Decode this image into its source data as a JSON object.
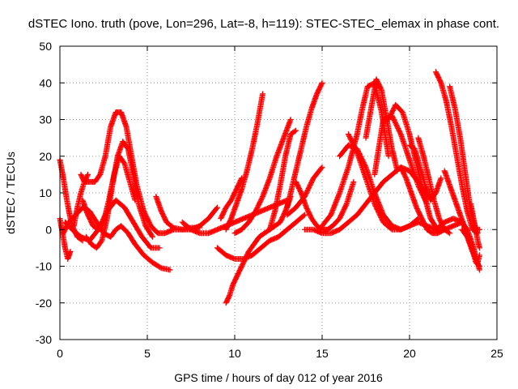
{
  "chart_data": {
    "type": "scatter",
    "title": "dSTEC Iono. truth (pove, Lon=296, Lat=-8, h=119): STEC-STEC_elemax in phase cont.",
    "xlabel": "GPS time / hours of day 012 of year 2016",
    "ylabel": "dSTEC  / TECUs",
    "xlim": [
      0,
      25
    ],
    "ylim": [
      -30,
      50
    ],
    "xticks": [
      0,
      5,
      10,
      15,
      20,
      25
    ],
    "yticks": [
      -30,
      -20,
      -10,
      0,
      10,
      20,
      30,
      40,
      50
    ],
    "grid": true,
    "marker": "+",
    "color": "#ff0000",
    "series": [
      {
        "x": [
          0.0,
          0.2,
          0.4,
          0.6,
          0.8,
          1.0,
          1.3
        ],
        "y": [
          19,
          14,
          8,
          3,
          0,
          -2,
          -3
        ]
      },
      {
        "x": [
          0.0,
          0.15,
          0.3,
          0.45,
          0.6
        ],
        "y": [
          3,
          -1,
          -5,
          -8,
          -6
        ]
      },
      {
        "x": [
          0.2,
          0.5,
          0.9,
          1.3,
          1.7,
          2.1,
          2.5,
          2.9,
          3.2,
          3.5,
          3.9,
          4.3,
          4.8,
          5.3,
          5.8,
          6.3
        ],
        "y": [
          -1,
          2,
          4,
          6,
          5,
          2,
          -1,
          -2,
          0,
          1,
          -1,
          -4,
          -7,
          -9,
          -10.5,
          -11
        ]
      },
      {
        "x": [
          0.3,
          0.7,
          1.2,
          1.7,
          2.2,
          2.7,
          3.2,
          3.7,
          4.2,
          4.7,
          5.2,
          5.7
        ],
        "y": [
          2,
          0,
          -2,
          -3,
          0,
          5,
          8,
          6,
          2,
          -2,
          -5,
          -5
        ]
      },
      {
        "x": [
          1.2,
          1.4,
          1.7,
          2.0,
          2.3,
          2.6,
          2.9,
          3.2,
          3.5,
          3.8,
          4.1,
          4.4,
          4.8,
          5.2,
          5.6,
          6.0,
          6.5,
          7.0,
          7.5,
          8.0
        ],
        "y": [
          15,
          13,
          13,
          13,
          15,
          20,
          28,
          32,
          32,
          28,
          20,
          12,
          5,
          1,
          -1,
          -1,
          0,
          0,
          0.5,
          0.5
        ]
      },
      {
        "x": [
          1.5,
          1.8,
          2.1,
          2.4,
          2.7,
          3.0,
          3.3,
          3.6,
          3.9,
          4.2,
          4.5,
          4.9,
          5.3
        ],
        "y": [
          -2,
          -4,
          -5,
          -3,
          3,
          12,
          20,
          24,
          22,
          15,
          7,
          1,
          -2
        ]
      },
      {
        "x": [
          1.3,
          1.6,
          1.9,
          2.2,
          2.5,
          2.8,
          3.1,
          3.4,
          3.7,
          4.0,
          4.3
        ],
        "y": [
          8,
          4,
          1,
          0,
          2,
          8,
          15,
          20,
          18,
          13,
          8
        ]
      },
      {
        "x": [
          0.8,
          1.0,
          1.2,
          1.4,
          1.6
        ],
        "y": [
          1,
          6,
          10,
          13,
          15
        ]
      },
      {
        "x": [
          5.5,
          5.8,
          6.1,
          6.5,
          7.0,
          7.5,
          8.0,
          8.5,
          9.0
        ],
        "y": [
          9,
          5,
          2,
          0.5,
          0,
          0,
          1,
          3,
          6
        ]
      },
      {
        "x": [
          7.0,
          7.5,
          8.0,
          8.5,
          9.0,
          9.5,
          10.0,
          10.5,
          11.0,
          11.5,
          12.0,
          12.5,
          13.0
        ],
        "y": [
          2,
          0,
          -1,
          -1,
          0,
          1,
          2,
          3,
          4,
          5,
          6,
          7,
          8
        ]
      },
      {
        "x": [
          9.0,
          9.5,
          10.0,
          10.5,
          11.0,
          11.5,
          12.0,
          12.5,
          13.0,
          13.5,
          14.0
        ],
        "y": [
          -5,
          -7,
          -8,
          -8,
          -7,
          -5,
          -3,
          -2,
          0,
          2,
          4
        ]
      },
      {
        "x": [
          9.5,
          9.7,
          9.9,
          10.2,
          10.5,
          10.8,
          11.1,
          11.4,
          11.7,
          12.0,
          12.3,
          12.6,
          12.9,
          13.2
        ],
        "y": [
          -20,
          -18,
          -15,
          -12,
          -9,
          -6,
          -4,
          -2,
          -1,
          0,
          1,
          2,
          5,
          9
        ]
      },
      {
        "x": [
          9.2,
          9.5,
          9.8,
          10.1,
          10.4
        ],
        "y": [
          3,
          6,
          8,
          11,
          14
        ]
      },
      {
        "x": [
          9.5,
          9.8,
          10.1,
          10.4,
          10.7,
          11.0,
          11.3,
          11.6
        ],
        "y": [
          0,
          3,
          7,
          11,
          16,
          22,
          29,
          37
        ]
      },
      {
        "x": [
          10.0,
          10.4,
          10.8,
          11.2,
          11.6,
          12.0,
          12.4,
          12.8,
          13.2
        ],
        "y": [
          -1,
          0,
          2,
          5,
          9,
          14,
          20,
          25,
          30
        ]
      },
      {
        "x": [
          12.0,
          12.3,
          12.6,
          12.9,
          13.2,
          13.5
        ],
        "y": [
          0,
          5,
          12,
          20,
          26,
          27
        ]
      },
      {
        "x": [
          13.0,
          13.5,
          14.0,
          14.5,
          15.0
        ],
        "y": [
          4,
          6,
          9,
          14,
          17
        ]
      },
      {
        "x": [
          13.0,
          13.2,
          13.5,
          13.8,
          14.1,
          14.4,
          14.7,
          15.0
        ],
        "y": [
          6,
          10,
          16,
          22,
          28,
          33,
          37,
          40
        ]
      },
      {
        "x": [
          13.5,
          13.8,
          14.1,
          14.4,
          14.7,
          15.0,
          15.3,
          15.6,
          16.0,
          16.4,
          16.8
        ],
        "y": [
          13,
          10,
          6,
          3,
          1,
          0,
          0,
          1,
          3,
          7,
          13
        ]
      },
      {
        "x": [
          14.0,
          14.5,
          15.0,
          15.5,
          16.0,
          16.5,
          17.0,
          17.5,
          18.0,
          18.5,
          19.0,
          19.5,
          20.0,
          20.5,
          21.0
        ],
        "y": [
          0,
          0,
          -1,
          -1,
          0,
          2,
          4,
          7,
          10,
          13,
          15,
          17,
          16,
          13,
          9
        ]
      },
      {
        "x": [
          15.0,
          15.5,
          16.0,
          16.5,
          17.0,
          17.3,
          17.6,
          18.0,
          18.4,
          18.8
        ],
        "y": [
          1,
          4,
          10,
          17,
          26,
          33,
          39,
          40,
          32,
          20
        ]
      },
      {
        "x": [
          16.0,
          16.5,
          17.0,
          17.5,
          18.0,
          18.5,
          19.0,
          19.5,
          20.0,
          20.5
        ],
        "y": [
          20,
          23,
          22,
          17,
          10,
          4,
          1,
          0,
          1,
          3
        ]
      },
      {
        "x": [
          16.5,
          17.0,
          17.5,
          18.0,
          18.5,
          19.0,
          19.5,
          20.0,
          20.5,
          21.0,
          21.5,
          22.0
        ],
        "y": [
          26,
          21,
          14,
          7,
          2,
          0,
          0,
          1,
          2,
          1,
          0,
          0
        ]
      },
      {
        "x": [
          17.5,
          17.8,
          18.1,
          18.4,
          18.7,
          19.0,
          19.3
        ],
        "y": [
          25,
          33,
          41,
          38,
          30,
          22,
          16
        ]
      },
      {
        "x": [
          18.0,
          18.5,
          19.0,
          19.5,
          20.0,
          20.5,
          21.0
        ],
        "y": [
          15,
          30,
          31,
          26,
          19,
          12,
          7
        ]
      },
      {
        "x": [
          18.8,
          19.2,
          19.6,
          20.0,
          20.4,
          20.8,
          21.2,
          21.6
        ],
        "y": [
          30,
          34,
          32,
          26,
          18,
          10,
          3,
          0
        ]
      },
      {
        "x": [
          19.5,
          19.8,
          20.1,
          20.4,
          20.7,
          21.0,
          21.3,
          21.6,
          22.0,
          22.5,
          23.0
        ],
        "y": [
          17,
          14,
          10,
          6,
          3,
          0,
          -1,
          -1,
          0,
          1,
          2
        ]
      },
      {
        "x": [
          20.0,
          20.3,
          20.6,
          20.9,
          21.2,
          21.5,
          21.8
        ],
        "y": [
          23,
          22,
          17,
          12,
          8,
          10,
          14
        ]
      },
      {
        "x": [
          20.5,
          20.8,
          21.1,
          21.4,
          21.7,
          22.0,
          22.3
        ],
        "y": [
          25,
          20,
          14,
          8,
          3,
          0,
          -1
        ]
      },
      {
        "x": [
          21.5,
          21.8,
          22.1,
          22.4,
          22.7,
          23.0,
          23.3,
          23.6,
          23.9
        ],
        "y": [
          43,
          40,
          35,
          28,
          20,
          12,
          5,
          0,
          -1
        ]
      },
      {
        "x": [
          22.3,
          22.6,
          22.9,
          23.2,
          23.5,
          23.8,
          24.0
        ],
        "y": [
          39,
          33,
          25,
          15,
          5,
          0,
          0
        ]
      },
      {
        "x": [
          22.0,
          22.3,
          22.6,
          22.9,
          23.2,
          23.5,
          23.8,
          24.0
        ],
        "y": [
          16,
          12,
          8,
          4,
          0,
          -4,
          -9,
          -10
        ]
      },
      {
        "x": [
          21.5,
          22.0,
          22.5,
          23.0,
          23.3,
          23.6,
          23.9,
          24.0
        ],
        "y": [
          0,
          2,
          3,
          2,
          0,
          -4,
          -9,
          -11
        ]
      },
      {
        "x": [
          23.0,
          23.3,
          23.6,
          23.9,
          24.0
        ],
        "y": [
          0,
          -2,
          -6,
          -9,
          -7
        ]
      },
      {
        "x": [
          23.5,
          23.7,
          23.9,
          24.0
        ],
        "y": [
          7,
          2,
          -3,
          -5
        ]
      }
    ]
  }
}
